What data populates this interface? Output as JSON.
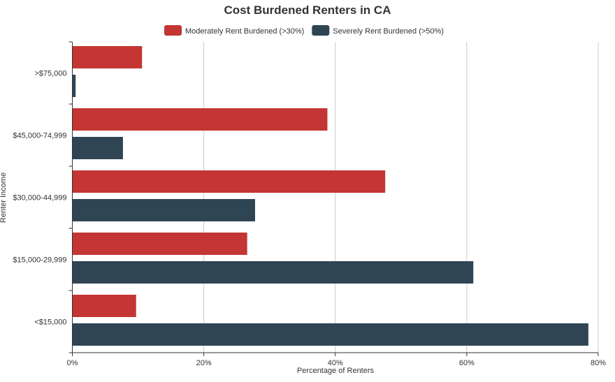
{
  "chart_data": {
    "type": "bar",
    "orientation": "horizontal",
    "title": "Cost Burdened Renters in CA",
    "xlabel": "Percentage of Renters",
    "ylabel": "Renter Income",
    "xlim": [
      0,
      80
    ],
    "xticks": [
      0,
      20,
      40,
      60,
      80
    ],
    "xtick_labels": [
      "0%",
      "20%",
      "40%",
      "60%",
      "80%"
    ],
    "grid": "vertical",
    "legend_position": "top-center",
    "categories": [
      ">$75,000",
      "$45,000-74,999",
      "$30,000-44,999",
      "$15,000-29,999",
      "<$15,000"
    ],
    "series": [
      {
        "name": "Moderately Rent Burdened (>30%)",
        "color": "#c33633",
        "values": [
          10.6,
          38.8,
          47.6,
          26.6,
          9.7
        ]
      },
      {
        "name": "Severely Rent Burdened (>50%)",
        "color": "#2f4554",
        "values": [
          0.5,
          7.7,
          27.8,
          61.0,
          78.5
        ]
      }
    ]
  }
}
